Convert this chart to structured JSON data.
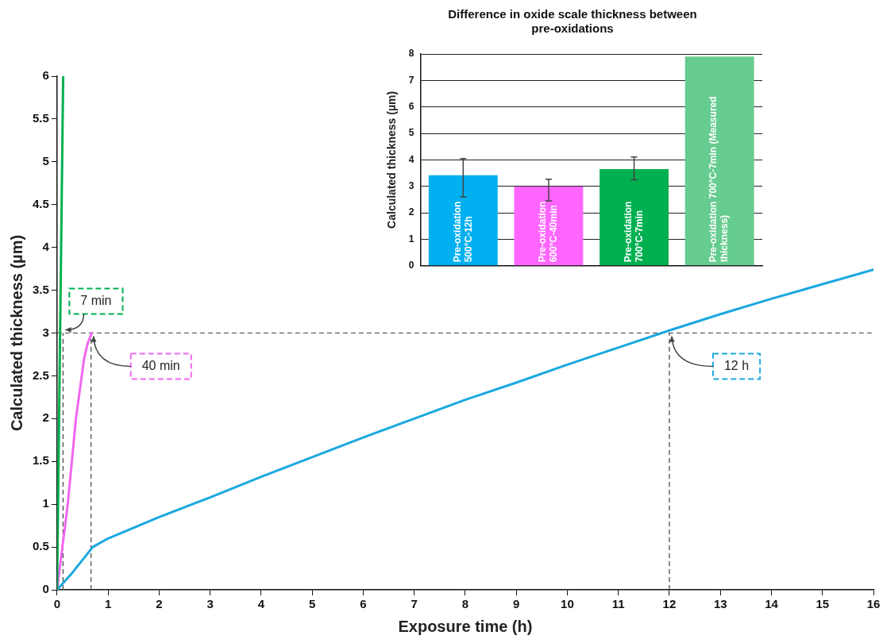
{
  "chart_data": [
    {
      "type": "line",
      "xlabel": "Exposure time (h)",
      "ylabel": "Calculated thickness (µm)",
      "xlim": [
        0,
        16
      ],
      "xticks": [
        0,
        1,
        2,
        3,
        4,
        5,
        6,
        7,
        8,
        9,
        10,
        11,
        12,
        13,
        14,
        15,
        16
      ],
      "ylim": [
        0,
        6
      ],
      "yticks": [
        0,
        0.5,
        1,
        1.5,
        2,
        2.5,
        3,
        3.5,
        4,
        4.5,
        5,
        5.5,
        6
      ],
      "grid": false,
      "legend": false,
      "marker": "none",
      "line_style": "solid",
      "series": [
        {
          "color": "#00b050",
          "x": [
            0,
            0.12
          ],
          "values": [
            0,
            6
          ]
        },
        {
          "color": "#f066f0",
          "x": [
            0,
            0.21,
            0.37,
            0.53,
            0.6,
            0.68
          ],
          "values": [
            0,
            1,
            2,
            2.7,
            2.88,
            3
          ]
        },
        {
          "color": "#1ba8e0",
          "x": [
            0,
            0.3,
            0.7,
            1,
            2,
            3,
            4,
            5,
            6,
            7,
            8,
            9,
            10,
            11,
            12,
            13,
            14,
            15,
            16
          ],
          "values": [
            0,
            0.2,
            0.5,
            0.6,
            0.85,
            1.08,
            1.32,
            1.55,
            1.78,
            2,
            2.22,
            2.42,
            2.63,
            2.83,
            3.03,
            3.22,
            3.4,
            3.57,
            3.74
          ]
        }
      ],
      "ref_lines": [
        {
          "axis": "y",
          "value": 3,
          "color": "#404040",
          "line_style": "dashed"
        },
        {
          "axis": "x",
          "value": 0.117,
          "color": "#404040",
          "line_style": "dashed"
        },
        {
          "axis": "x",
          "value": 0.667,
          "color": "#404040",
          "line_style": "dashed"
        },
        {
          "axis": "x",
          "value": 12,
          "color": "#404040",
          "line_style": "dashed"
        }
      ],
      "annotations": [
        {
          "text": "7 min",
          "x": 0.117,
          "y": 3
        },
        {
          "text": "40 min",
          "x": 0.667,
          "y": 3
        },
        {
          "text": "12 h",
          "x": 12,
          "y": 3
        }
      ]
    },
    {
      "type": "bar",
      "title": "Difference in oxide scale thickness between pre-oxidations",
      "ylabel": "Calculated thickness (µm)",
      "categories": [
        "Pre-oxidation 500°C-12h",
        "Pre-oxidation 600°C-40min",
        "Pre-oxidation 700°C-7min",
        "Pre-oxidation 700°C-7min (Measured thickness)"
      ],
      "values": [
        3.42,
        2.99,
        3.65,
        7.9
      ],
      "colors": [
        "#00b0f0",
        "#ff66ff",
        "#00b050",
        "#66cc8f"
      ],
      "errors": [
        [
          2.6,
          4.05
        ],
        [
          2.45,
          3.27
        ],
        [
          3.25,
          4.11
        ],
        null
      ],
      "ylim": [
        0,
        8
      ],
      "yticks": [
        0,
        1,
        2,
        3,
        4,
        5,
        6,
        7,
        8
      ],
      "grid": "y",
      "legend": false
    }
  ]
}
